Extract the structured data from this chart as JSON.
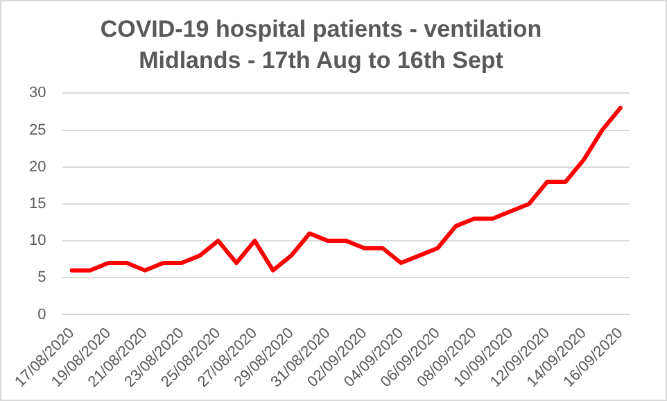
{
  "chart_data": {
    "type": "line",
    "title": "COVID-19 hospital patients - ventilation\nMidlands - 17th Aug to 16th Sept",
    "categories": [
      "17/08/2020",
      null,
      "19/08/2020",
      null,
      "21/08/2020",
      null,
      "23/08/2020",
      null,
      "25/08/2020",
      null,
      "27/08/2020",
      null,
      "29/08/2020",
      null,
      "31/08/2020",
      null,
      "02/09/2020",
      null,
      "04/09/2020",
      null,
      "06/09/2020",
      null,
      "08/09/2020",
      null,
      "10/09/2020",
      null,
      "12/09/2020",
      null,
      "14/09/2020",
      null,
      "16/09/2020"
    ],
    "series": [
      {
        "color": "#ff0000",
        "values": [
          6,
          6,
          7,
          7,
          6,
          7,
          7,
          8,
          10,
          7,
          10,
          6,
          8,
          11,
          10,
          10,
          9,
          9,
          7,
          8,
          9,
          12,
          13,
          13,
          14,
          15,
          18,
          18,
          21,
          25,
          28
        ]
      }
    ],
    "ylim": [
      0,
      30
    ],
    "yticks": [
      0,
      5,
      10,
      15,
      20,
      25,
      30
    ],
    "grid": "y",
    "legend": false,
    "marker": "none",
    "line_style": "solid"
  }
}
